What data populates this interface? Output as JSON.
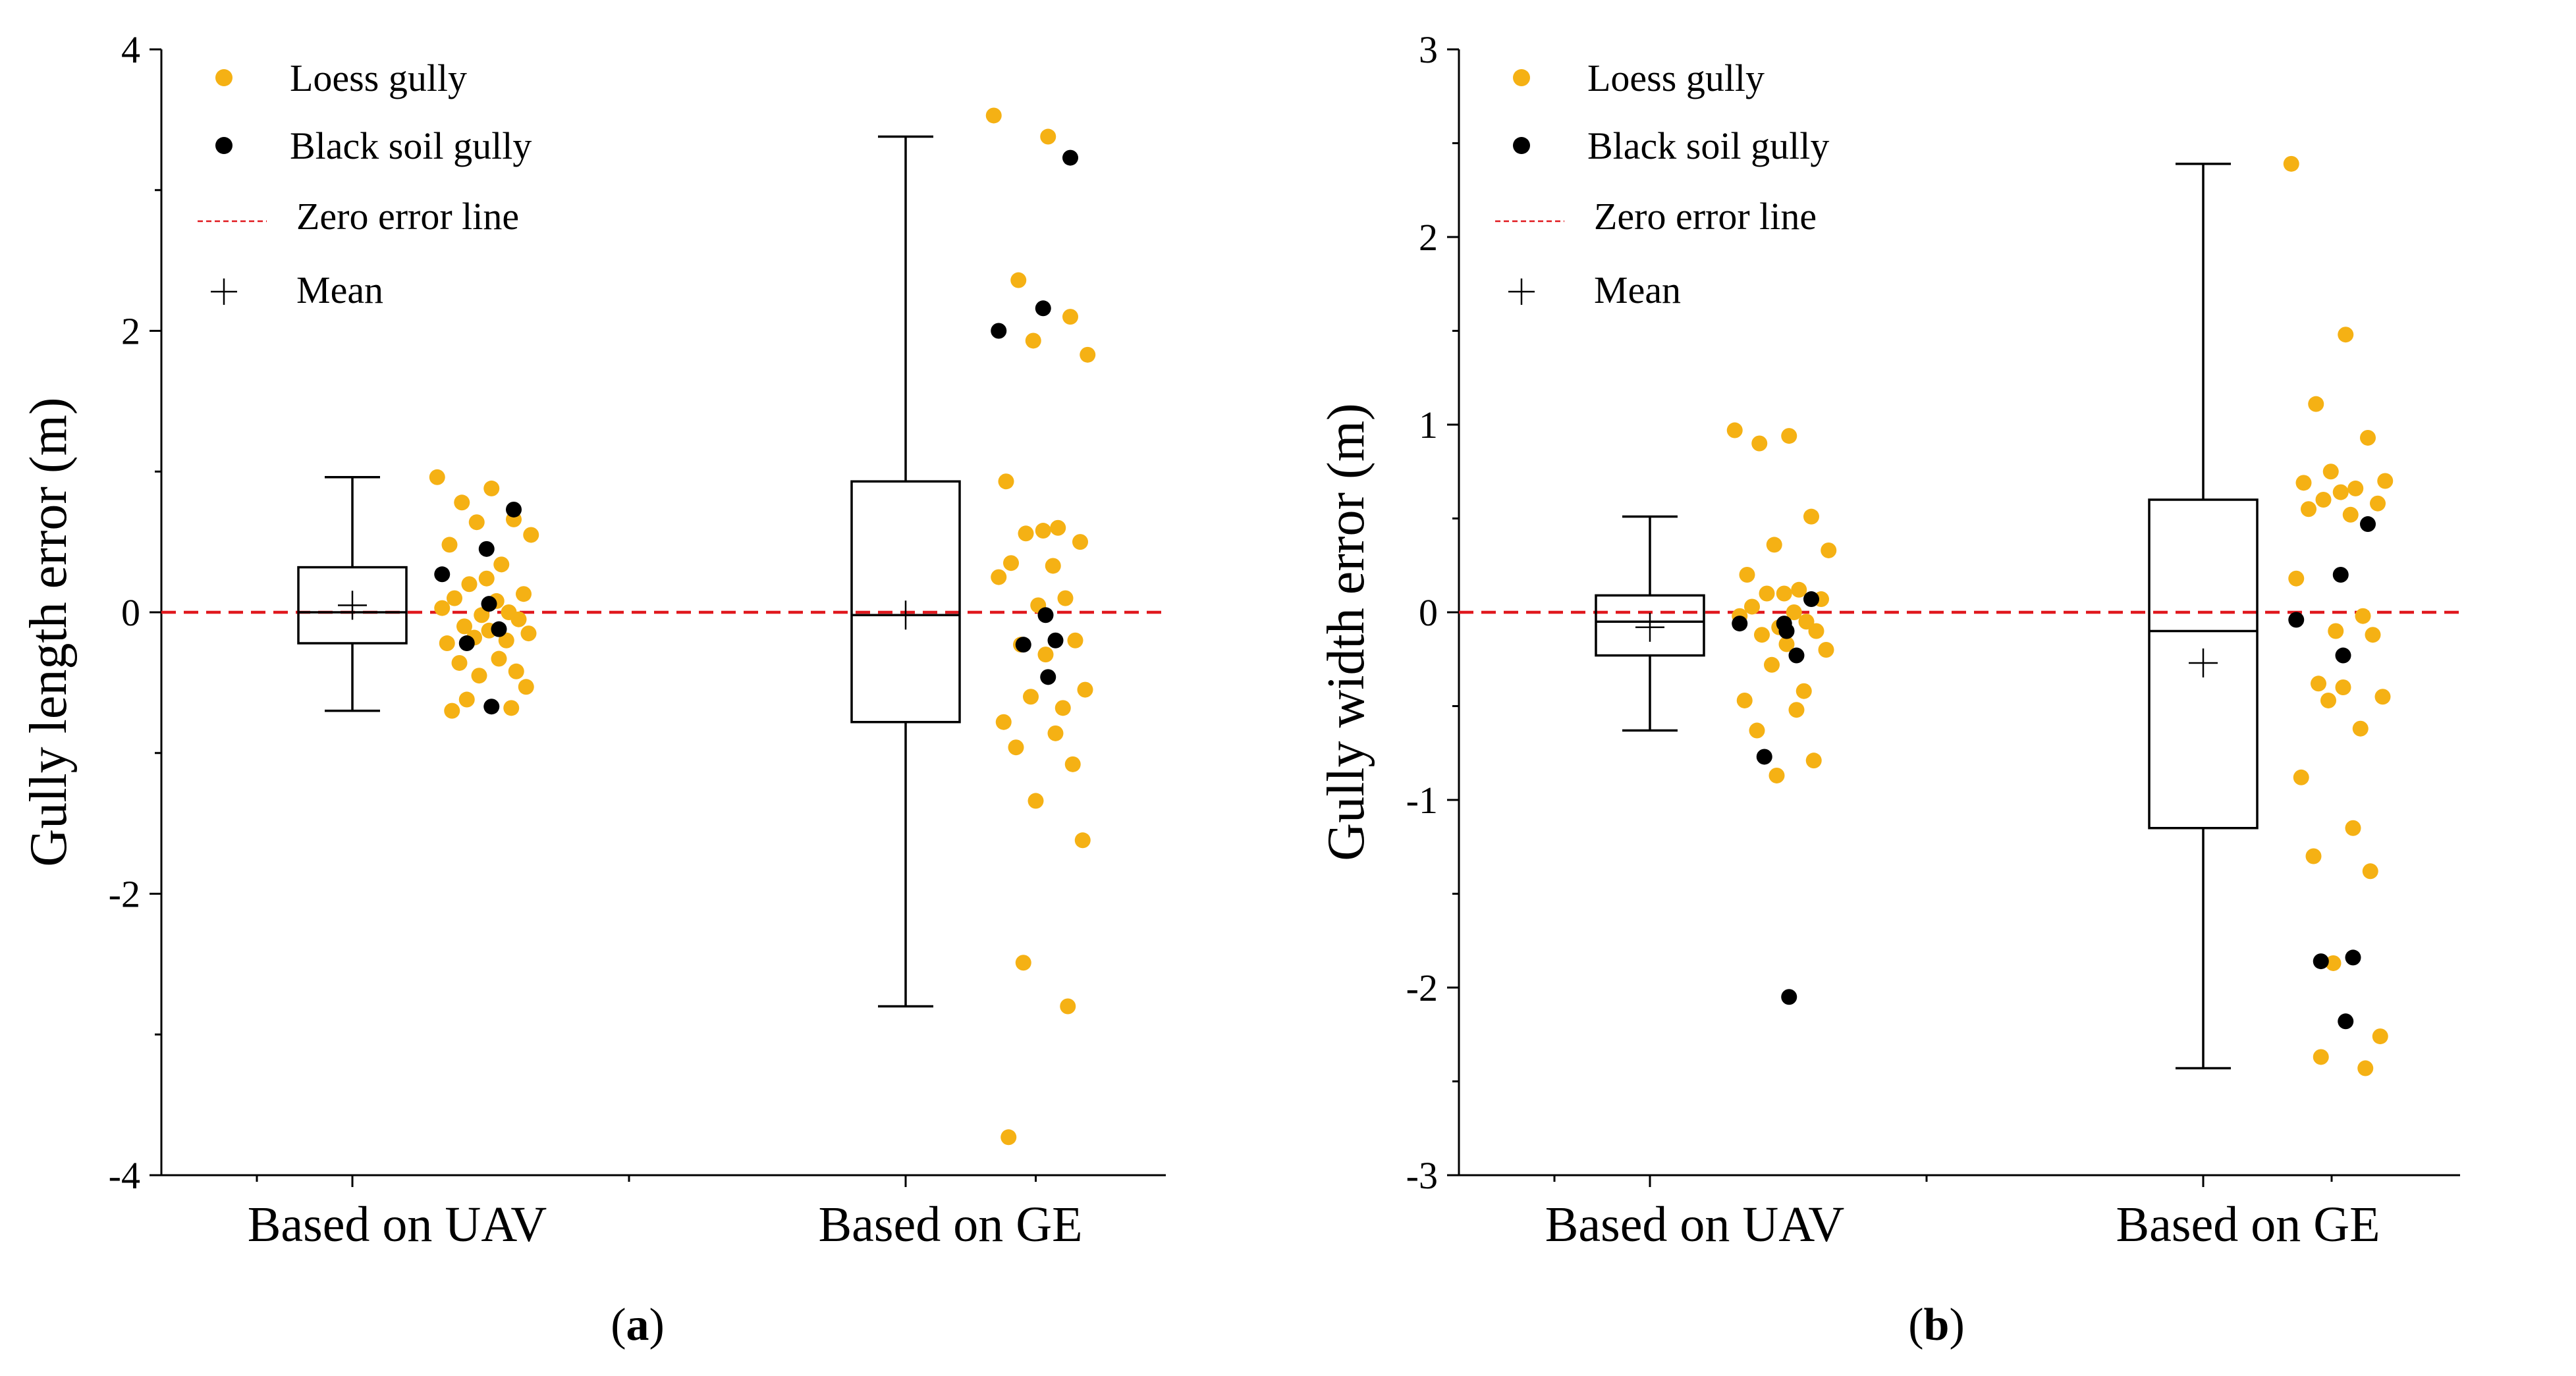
{
  "colors": {
    "loess": "#F5B114",
    "black": "#000000",
    "zero_line": "#E0181E",
    "box": "#000000"
  },
  "legend": {
    "loess": "Loess gully",
    "black": "Black soil gully",
    "zero": "Zero error line",
    "mean": "Mean"
  },
  "chart_data": [
    {
      "type": "box-scatter",
      "panel_label": "a",
      "ylabel": "Gully length error (m)",
      "ylim": [
        -4,
        4
      ],
      "yticks": [
        -4,
        -2,
        0,
        2,
        4
      ],
      "categories": [
        "Based on UAV",
        "Based on GE"
      ],
      "boxes": [
        {
          "category": "Based on UAV",
          "whisker_low": -0.7,
          "q1": -0.22,
          "median": 0.0,
          "q3": 0.32,
          "whisker_high": 0.96,
          "mean": 0.05
        },
        {
          "category": "Based on GE",
          "whisker_low": -2.8,
          "q1": -0.78,
          "median": -0.02,
          "q3": 0.93,
          "whisker_high": 3.38,
          "mean": -0.02
        }
      ],
      "points": [
        {
          "category": "Based on UAV",
          "loess": [
            0.96,
            0.88,
            0.78,
            0.66,
            0.64,
            0.55,
            0.48,
            0.34,
            0.24,
            0.2,
            0.13,
            0.1,
            0.08,
            0.03,
            0.0,
            -0.02,
            -0.05,
            -0.1,
            -0.13,
            -0.15,
            -0.18,
            -0.2,
            -0.22,
            -0.33,
            -0.36,
            -0.42,
            -0.45,
            -0.53,
            -0.62,
            -0.68,
            -0.7
          ],
          "black": [
            0.73,
            0.45,
            0.27,
            0.06,
            -0.12,
            -0.22,
            -0.67
          ]
        },
        {
          "category": "Based on GE",
          "loess": [
            3.53,
            3.38,
            2.36,
            2.1,
            1.93,
            1.83,
            0.93,
            0.6,
            0.58,
            0.56,
            0.5,
            0.35,
            0.33,
            0.25,
            0.1,
            0.05,
            -0.2,
            -0.23,
            -0.3,
            -0.55,
            -0.6,
            -0.68,
            -0.78,
            -0.86,
            -0.96,
            -1.08,
            -1.34,
            -1.62,
            -2.49,
            -2.8,
            -3.73
          ],
          "black": [
            3.23,
            2.16,
            2.0,
            -0.02,
            -0.2,
            -0.23,
            -0.46
          ]
        }
      ]
    },
    {
      "type": "box-scatter",
      "panel_label": "b",
      "ylabel": "Gully width error (m)",
      "ylim": [
        -3,
        3
      ],
      "yticks": [
        -3,
        -2,
        -1,
        0,
        1,
        2,
        3
      ],
      "categories": [
        "Based on UAV",
        "Based on GE"
      ],
      "boxes": [
        {
          "category": "Based on UAV",
          "whisker_low": -0.63,
          "q1": -0.23,
          "median": -0.05,
          "q3": 0.09,
          "whisker_high": 0.51,
          "mean": -0.08
        },
        {
          "category": "Based on GE",
          "whisker_low": -2.43,
          "q1": -1.15,
          "median": -0.1,
          "q3": 0.6,
          "whisker_high": 2.39,
          "mean": -0.27
        }
      ],
      "points": [
        {
          "category": "Based on UAV",
          "loess": [
            0.97,
            0.94,
            0.9,
            0.51,
            0.36,
            0.33,
            0.2,
            0.12,
            0.1,
            0.1,
            0.07,
            0.03,
            0.0,
            -0.02,
            -0.05,
            -0.08,
            -0.1,
            -0.12,
            -0.17,
            -0.2,
            -0.28,
            -0.42,
            -0.47,
            -0.52,
            -0.63,
            -0.79,
            -0.87
          ],
          "black": [
            0.07,
            -0.06,
            -0.06,
            -0.1,
            -0.23,
            -0.77,
            -2.05
          ]
        },
        {
          "category": "Based on GE",
          "loess": [
            2.39,
            1.48,
            1.11,
            0.93,
            0.75,
            0.7,
            0.69,
            0.66,
            0.64,
            0.6,
            0.58,
            0.55,
            0.52,
            0.18,
            -0.02,
            -0.1,
            -0.12,
            -0.38,
            -0.4,
            -0.45,
            -0.47,
            -0.62,
            -0.88,
            -1.15,
            -1.3,
            -1.38,
            -1.87,
            -2.26,
            -2.37,
            -2.43
          ],
          "black": [
            0.47,
            0.2,
            -0.04,
            -0.23,
            -1.84,
            -1.86,
            -2.18
          ]
        }
      ]
    }
  ]
}
